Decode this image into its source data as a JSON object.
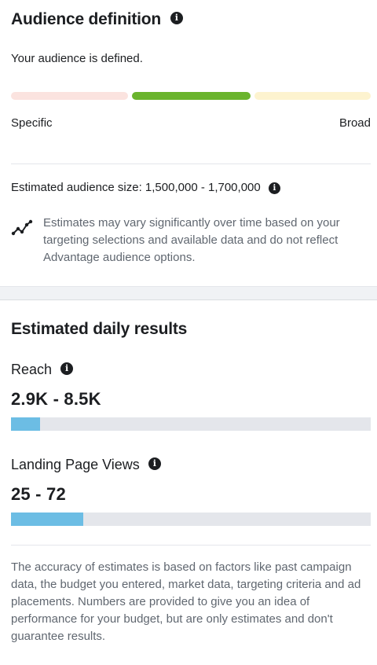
{
  "audience": {
    "title": "Audience definition",
    "status": "Your audience is defined.",
    "meter": {
      "left_label": "Specific",
      "right_label": "Broad",
      "colors": [
        "#fbe3df",
        "#6ab42d",
        "#fdf3cf"
      ],
      "active_segment": 2
    },
    "size_label": "Estimated audience size: 1,500,000 - 1,700,000",
    "note": "Estimates may vary significantly over time based on your targeting selections and available data and do not reflect Advantage audience options.",
    "note_icon": "trend-line-icon"
  },
  "results": {
    "title": "Estimated daily results",
    "reach": {
      "label": "Reach",
      "value": "2.9K - 8.5K",
      "fill_fraction": 0.08
    },
    "landing": {
      "label": "Landing Page Views",
      "value": "25 - 72",
      "fill_fraction": 0.2
    },
    "bar_color": "#6cbde4",
    "disclaimer": "The accuracy of estimates is based on factors like past campaign data, the budget you entered, market data, targeting criteria and ad placements. Numbers are provided to give you an idea of performance for your budget, but are only estimates and don't guarantee results."
  },
  "icons": {
    "info": "info-icon",
    "info_glyph": "i"
  }
}
